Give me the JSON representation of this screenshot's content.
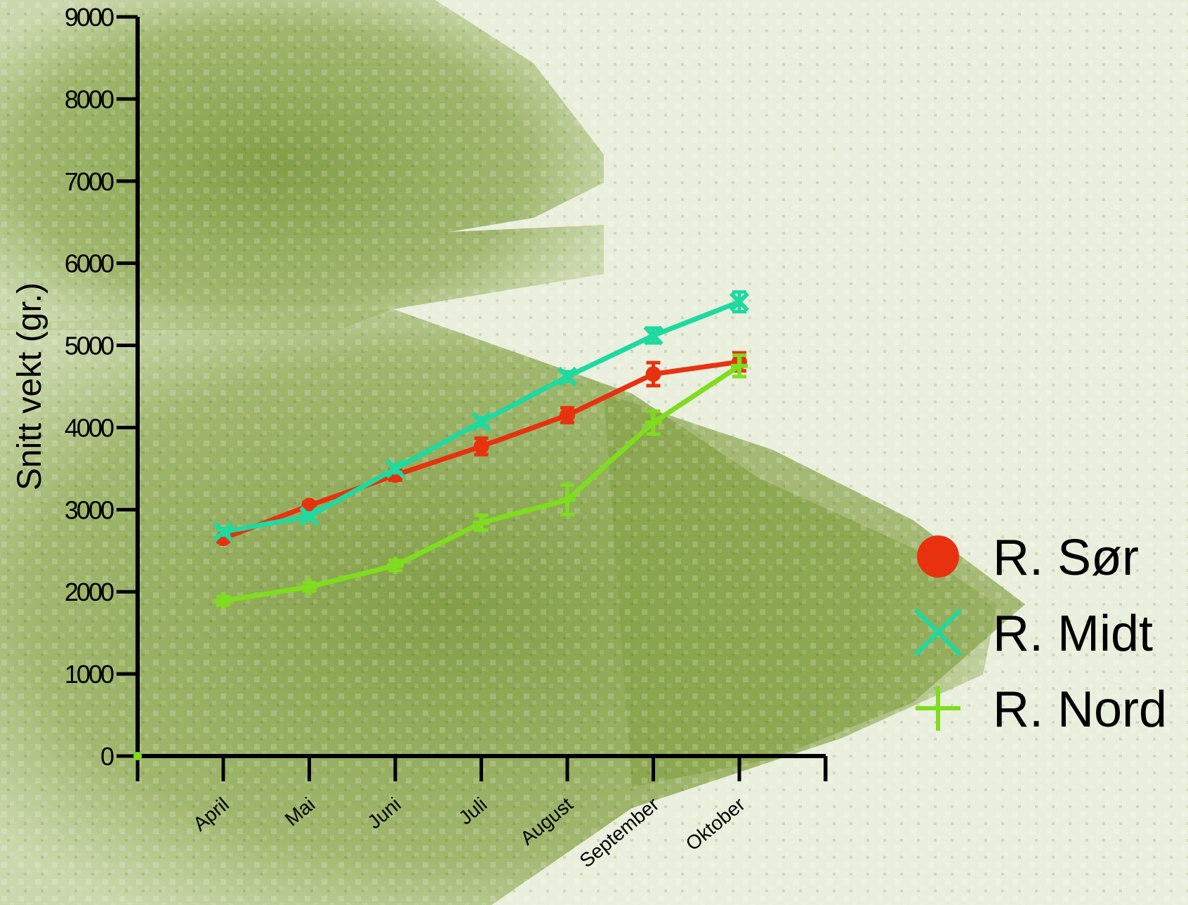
{
  "chart_data": {
    "type": "line",
    "title": "",
    "xlabel": "",
    "ylabel": "Snitt vekt (gr.)",
    "ylim": [
      0,
      9000
    ],
    "yticks": [
      "0",
      "1000",
      "2000",
      "3000",
      "4000",
      "5000",
      "6000",
      "7000",
      "8000",
      "9000"
    ],
    "categories": [
      "April",
      "Mai",
      "Juni",
      "Juli",
      "August",
      "September",
      "Oktober"
    ],
    "grid": false,
    "legend_position": "right",
    "background": "photo of a fish tinted green",
    "background_color": "#8aa84e",
    "series": [
      {
        "name": "R. Sør",
        "color": "#e8320f",
        "marker": "circle",
        "values": [
          2650,
          3050,
          3420,
          3770,
          4150,
          4650,
          4800
        ],
        "errors": [
          40,
          40,
          60,
          100,
          90,
          140,
          110
        ]
      },
      {
        "name": "R. Midt",
        "color": "#1ed9a0",
        "marker": "x",
        "values": [
          2730,
          2920,
          3500,
          4070,
          4620,
          5120,
          5530
        ],
        "errors": [
          40,
          40,
          50,
          50,
          60,
          90,
          120
        ]
      },
      {
        "name": "R. Nord",
        "color": "#7fdc1e",
        "marker": "plus",
        "values": [
          1890,
          2060,
          2320,
          2840,
          3120,
          4060,
          4750
        ],
        "errors": [
          50,
          50,
          60,
          90,
          180,
          140,
          130
        ]
      }
    ]
  }
}
